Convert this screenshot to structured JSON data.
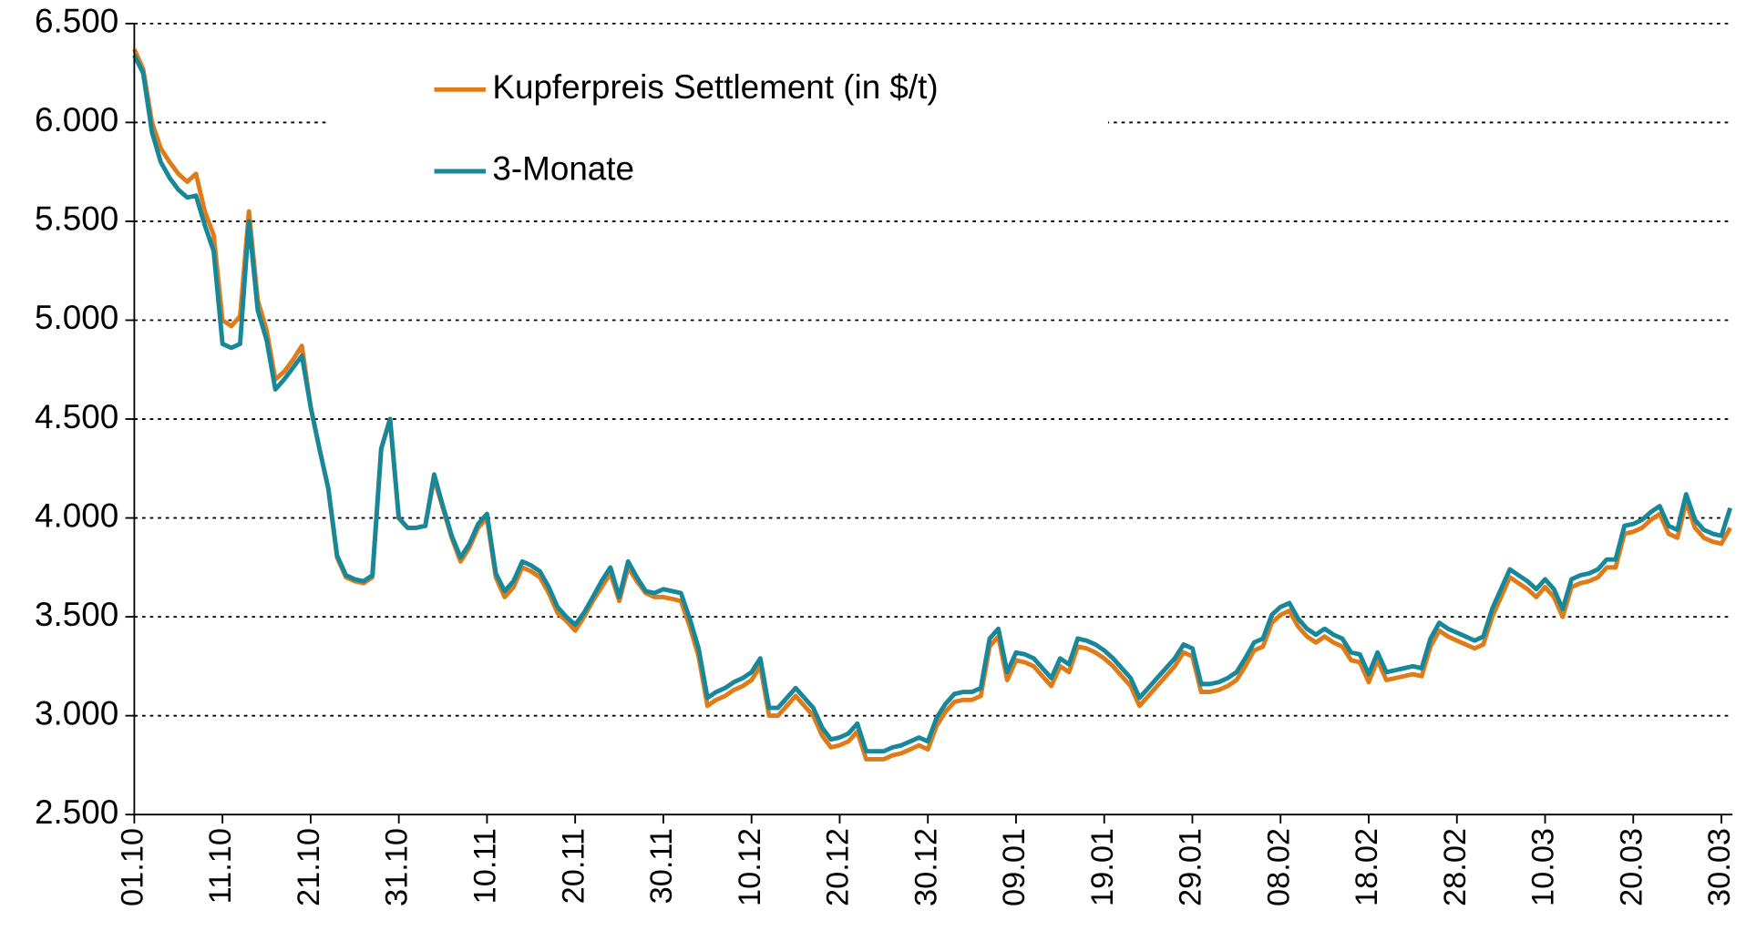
{
  "chart_data": {
    "type": "line",
    "categories": [
      "01.10",
      null,
      null,
      null,
      null,
      null,
      null,
      null,
      null,
      null,
      "11.10",
      null,
      null,
      null,
      null,
      null,
      null,
      null,
      null,
      null,
      "21.10",
      null,
      null,
      null,
      null,
      null,
      null,
      null,
      null,
      null,
      "31.10",
      null,
      null,
      null,
      null,
      null,
      null,
      null,
      null,
      null,
      "10.11",
      null,
      null,
      null,
      null,
      null,
      null,
      null,
      null,
      null,
      "20.11",
      null,
      null,
      null,
      null,
      null,
      null,
      null,
      null,
      null,
      "30.11",
      null,
      null,
      null,
      null,
      null,
      null,
      null,
      null,
      null,
      "10.12",
      null,
      null,
      null,
      null,
      null,
      null,
      null,
      null,
      null,
      "20.12",
      null,
      null,
      null,
      null,
      null,
      null,
      null,
      null,
      null,
      "30.12",
      null,
      null,
      null,
      null,
      null,
      null,
      null,
      null,
      null,
      "09.01",
      null,
      null,
      null,
      null,
      null,
      null,
      null,
      null,
      null,
      "19.01",
      null,
      null,
      null,
      null,
      null,
      null,
      null,
      null,
      null,
      "29.01",
      null,
      null,
      null,
      null,
      null,
      null,
      null,
      null,
      null,
      "08.02",
      null,
      null,
      null,
      null,
      null,
      null,
      null,
      null,
      null,
      "18.02",
      null,
      null,
      null,
      null,
      null,
      null,
      null,
      null,
      null,
      "28.02",
      null,
      null,
      null,
      null,
      null,
      null,
      null,
      null,
      null,
      "10.03",
      null,
      null,
      null,
      null,
      null,
      null,
      null,
      null,
      null,
      "20.03",
      null,
      null,
      null,
      null,
      null,
      null,
      null,
      null,
      null,
      "30.03",
      null
    ],
    "series": [
      {
        "name": "Kupferpreis Settlement (in $/t)",
        "color": "#e07b1a",
        "values": [
          6370,
          6270,
          6000,
          5870,
          5800,
          5740,
          5700,
          5740,
          5550,
          5430,
          5000,
          4970,
          5020,
          5550,
          5100,
          4950,
          4700,
          4740,
          4800,
          4870,
          4560,
          4350,
          4150,
          3800,
          3700,
          3680,
          3670,
          3700,
          4350,
          4500,
          4000,
          3950,
          3950,
          3960,
          4200,
          4050,
          3900,
          3780,
          3850,
          3950,
          4000,
          3700,
          3600,
          3650,
          3750,
          3730,
          3700,
          3620,
          3520,
          3480,
          3430,
          3500,
          3580,
          3650,
          3720,
          3580,
          3750,
          3680,
          3620,
          3600,
          3600,
          3590,
          3580,
          3450,
          3300,
          3050,
          3080,
          3100,
          3130,
          3150,
          3180,
          3250,
          3000,
          3000,
          3050,
          3100,
          3050,
          3000,
          2900,
          2840,
          2850,
          2870,
          2920,
          2780,
          2780,
          2780,
          2800,
          2810,
          2830,
          2850,
          2830,
          2950,
          3020,
          3070,
          3080,
          3080,
          3100,
          3350,
          3400,
          3180,
          3280,
          3270,
          3250,
          3200,
          3150,
          3250,
          3220,
          3350,
          3340,
          3320,
          3290,
          3250,
          3200,
          3150,
          3050,
          3100,
          3150,
          3200,
          3250,
          3320,
          3300,
          3120,
          3120,
          3130,
          3150,
          3180,
          3250,
          3330,
          3350,
          3470,
          3510,
          3530,
          3450,
          3400,
          3370,
          3400,
          3370,
          3350,
          3280,
          3270,
          3170,
          3280,
          3180,
          3190,
          3200,
          3210,
          3200,
          3350,
          3430,
          3400,
          3380,
          3360,
          3340,
          3360,
          3500,
          3600,
          3700,
          3670,
          3640,
          3600,
          3650,
          3600,
          3500,
          3650,
          3670,
          3680,
          3700,
          3750,
          3750,
          3920,
          3930,
          3950,
          3990,
          4020,
          3920,
          3900,
          4080,
          3950,
          3900,
          3880,
          3870,
          3950
        ]
      },
      {
        "name": "3-Monate",
        "color": "#17879a",
        "values": [
          6340,
          6250,
          5950,
          5800,
          5720,
          5660,
          5620,
          5630,
          5480,
          5350,
          4880,
          4860,
          4880,
          5500,
          5050,
          4900,
          4650,
          4700,
          4760,
          4820,
          4560,
          4350,
          4150,
          3810,
          3710,
          3690,
          3680,
          3710,
          4350,
          4500,
          4000,
          3950,
          3950,
          3960,
          4220,
          4060,
          3910,
          3800,
          3870,
          3970,
          4020,
          3720,
          3630,
          3680,
          3780,
          3760,
          3730,
          3650,
          3550,
          3500,
          3460,
          3520,
          3600,
          3680,
          3750,
          3600,
          3780,
          3700,
          3630,
          3620,
          3640,
          3630,
          3620,
          3490,
          3340,
          3090,
          3120,
          3140,
          3170,
          3190,
          3220,
          3290,
          3040,
          3040,
          3090,
          3140,
          3090,
          3040,
          2940,
          2880,
          2890,
          2910,
          2960,
          2820,
          2820,
          2820,
          2840,
          2850,
          2870,
          2890,
          2870,
          2990,
          3060,
          3110,
          3120,
          3120,
          3140,
          3390,
          3440,
          3220,
          3320,
          3310,
          3290,
          3240,
          3190,
          3290,
          3260,
          3390,
          3380,
          3360,
          3330,
          3290,
          3240,
          3190,
          3090,
          3140,
          3190,
          3240,
          3290,
          3360,
          3340,
          3160,
          3160,
          3170,
          3190,
          3220,
          3290,
          3370,
          3390,
          3510,
          3550,
          3570,
          3490,
          3440,
          3410,
          3440,
          3410,
          3390,
          3320,
          3310,
          3210,
          3320,
          3220,
          3230,
          3240,
          3250,
          3240,
          3390,
          3470,
          3440,
          3420,
          3400,
          3380,
          3400,
          3540,
          3640,
          3740,
          3710,
          3680,
          3640,
          3690,
          3640,
          3540,
          3690,
          3710,
          3720,
          3740,
          3790,
          3790,
          3960,
          3970,
          3990,
          4030,
          4060,
          3960,
          3940,
          4120,
          3990,
          3940,
          3920,
          3910,
          4050
        ]
      }
    ],
    "ylim": [
      2500,
      6500
    ],
    "yticks": [
      {
        "value": 2500,
        "label": "2.500"
      },
      {
        "value": 3000,
        "label": "3.000"
      },
      {
        "value": 3500,
        "label": "3.500"
      },
      {
        "value": 4000,
        "label": "4.000"
      },
      {
        "value": 4500,
        "label": "4.500"
      },
      {
        "value": 5000,
        "label": "5.000"
      },
      {
        "value": 5500,
        "label": "5.500"
      },
      {
        "value": 6000,
        "label": "6.000"
      },
      {
        "value": 6500,
        "label": "6.500"
      }
    ],
    "grid": true
  }
}
